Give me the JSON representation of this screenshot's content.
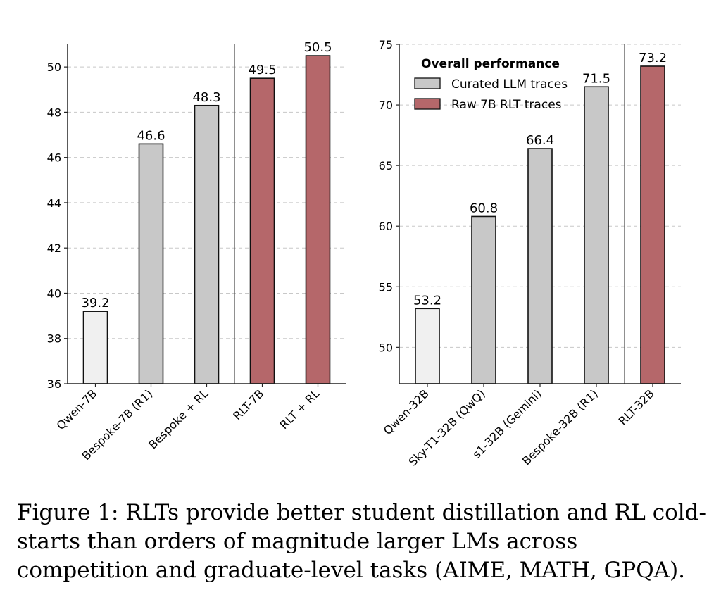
{
  "caption": "Figure 1: RLTs provide better student distillation and RL cold-starts than orders of magnitude larger LMs across competition and graduate-level tasks (AIME, MATH, GPQA).",
  "colors": {
    "base": "#f0f0f0",
    "curated": "#c8c8c8",
    "rlt": "#b5676a",
    "grid": "#c8c8c8",
    "axis": "#222222"
  },
  "chart_data": [
    {
      "type": "bar",
      "categories": [
        "Qwen-7B",
        "Bespoke-7B (R1)",
        "Bespoke + RL",
        "RLT-7B",
        "RLT + RL"
      ],
      "values": [
        39.2,
        46.6,
        48.3,
        49.5,
        50.5
      ],
      "value_labels": [
        "39.2",
        "46.6",
        "48.3",
        "49.5",
        "50.5"
      ],
      "bar_groups": [
        "base",
        "curated",
        "curated",
        "rlt",
        "rlt"
      ],
      "ylim": [
        36,
        51
      ],
      "yticks": [
        36,
        38,
        40,
        42,
        44,
        46,
        48,
        50
      ],
      "ytick_labels": [
        "36",
        "38",
        "40",
        "42",
        "44",
        "46",
        "48",
        "50"
      ],
      "separator_after_index": 2,
      "grid": "horizontal dashed",
      "title": "",
      "xlabel": "",
      "ylabel": ""
    },
    {
      "type": "bar",
      "categories": [
        "Qwen-32B",
        "Sky-T1-32B (QwQ)",
        "s1-32B (Gemini)",
        "Bespoke-32B (R1)",
        "RLT-32B"
      ],
      "values": [
        53.2,
        60.8,
        66.4,
        71.5,
        73.2
      ],
      "value_labels": [
        "53.2",
        "60.8",
        "66.4",
        "71.5",
        "73.2"
      ],
      "bar_groups": [
        "base",
        "curated",
        "curated",
        "curated",
        "rlt"
      ],
      "ylim": [
        47,
        75
      ],
      "yticks": [
        50,
        55,
        60,
        65,
        70,
        75
      ],
      "ytick_labels": [
        "50",
        "55",
        "60",
        "65",
        "70",
        "75"
      ],
      "separator_after_index": 3,
      "grid": "horizontal dashed",
      "legend": {
        "title": "Overall performance",
        "placement": "top-left",
        "entries": [
          {
            "label": "Curated LLM traces",
            "group": "curated"
          },
          {
            "label": "Raw 7B RLT traces",
            "group": "rlt"
          }
        ]
      },
      "title": "",
      "xlabel": "",
      "ylabel": ""
    }
  ]
}
